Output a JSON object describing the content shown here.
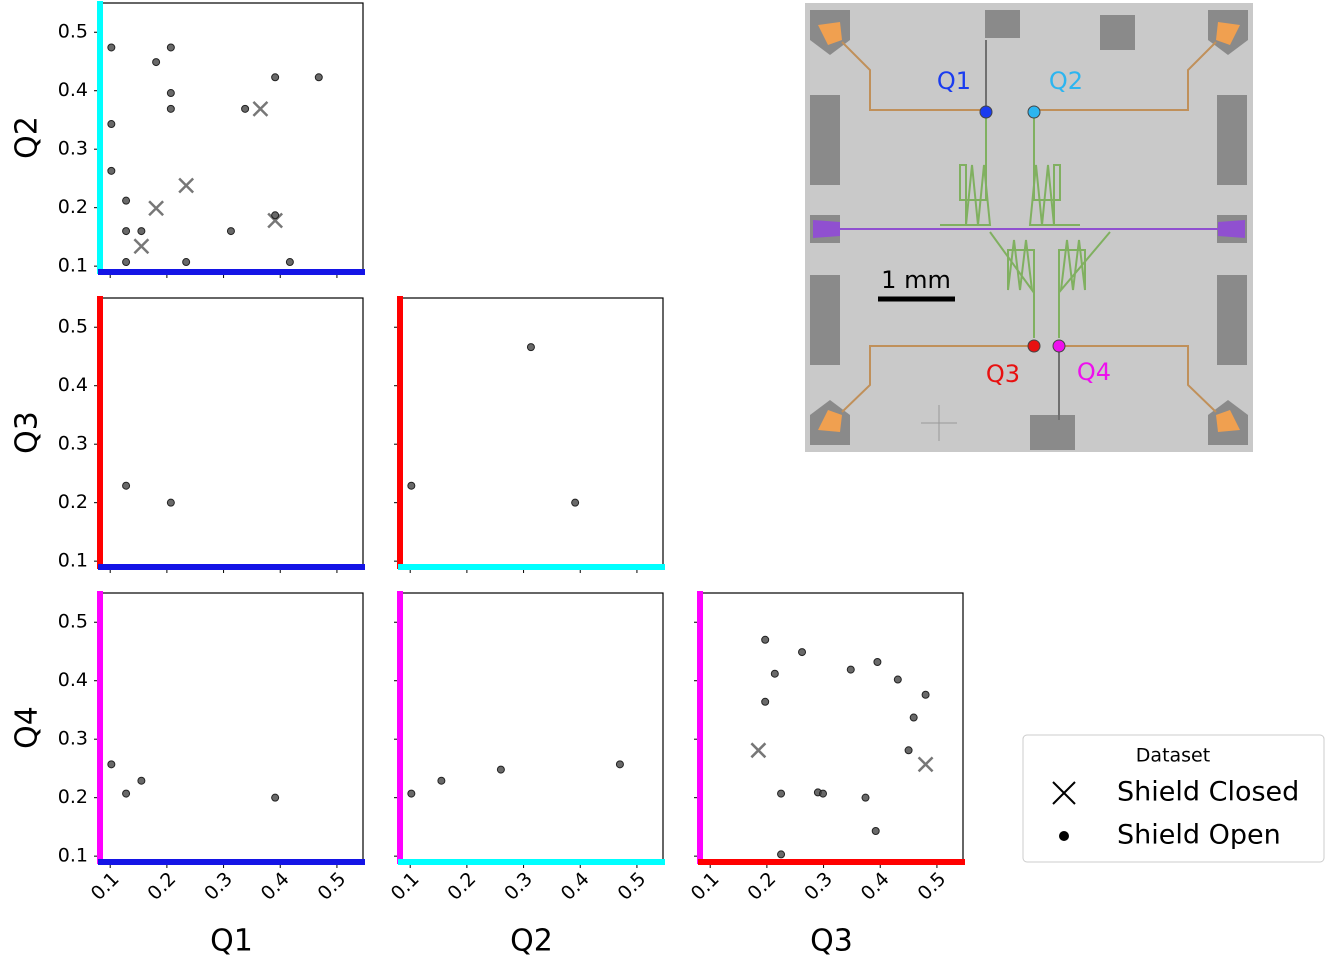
{
  "chart_data": [
    {
      "type": "scatter",
      "ylabel": "Q2",
      "xaxis_color": "#1414e6",
      "yaxis_color": "#00ffff",
      "xlim": [
        0.082,
        0.546
      ],
      "ylim": [
        0.09,
        0.55
      ],
      "yticks": [
        0.1,
        0.2,
        0.3,
        0.4,
        0.5
      ],
      "series": [
        {
          "name": "Shield Closed",
          "marker": "x",
          "x": [
            0.365,
            0.181,
            0.234,
            0.155,
            0.391
          ],
          "values": [
            0.369,
            0.199,
            0.238,
            0.134,
            0.178
          ]
        },
        {
          "name": "Shield Open",
          "marker": "o",
          "x": [
            0.102,
            0.207,
            0.181,
            0.207,
            0.207,
            0.391,
            0.468,
            0.338,
            0.102,
            0.102,
            0.128,
            0.128,
            0.155,
            0.313,
            0.391,
            0.128,
            0.234,
            0.417
          ],
          "values": [
            0.474,
            0.474,
            0.449,
            0.396,
            0.369,
            0.423,
            0.423,
            0.369,
            0.343,
            0.263,
            0.212,
            0.16,
            0.16,
            0.16,
            0.187,
            0.107,
            0.107,
            0.107
          ]
        }
      ]
    },
    {
      "type": "scatter",
      "ylabel": "Q3",
      "xaxis_color": "#1414e6",
      "yaxis_color": "#ff0000",
      "xlim": [
        0.082,
        0.546
      ],
      "ylim": [
        0.09,
        0.55
      ],
      "yticks": [
        0.1,
        0.2,
        0.3,
        0.4,
        0.5
      ],
      "series": [
        {
          "name": "Shield Closed",
          "marker": "x",
          "x": [],
          "values": []
        },
        {
          "name": "Shield Open",
          "marker": "o",
          "x": [
            0.128,
            0.207
          ],
          "values": [
            0.229,
            0.2
          ]
        }
      ]
    },
    {
      "type": "scatter",
      "xaxis_color": "#00ffff",
      "yaxis_color": "#ff0000",
      "xlim": [
        0.082,
        0.546
      ],
      "ylim": [
        0.09,
        0.55
      ],
      "series": [
        {
          "name": "Shield Closed",
          "marker": "x",
          "x": [],
          "values": []
        },
        {
          "name": "Shield Open",
          "marker": "o",
          "x": [
            0.313,
            0.102,
            0.391
          ],
          "values": [
            0.466,
            0.229,
            0.2
          ]
        }
      ]
    },
    {
      "type": "scatter",
      "xlabel": "Q1",
      "ylabel": "Q4",
      "xaxis_color": "#1414e6",
      "yaxis_color": "#ff00ff",
      "xlim": [
        0.082,
        0.546
      ],
      "ylim": [
        0.09,
        0.55
      ],
      "xticks": [
        0.1,
        0.2,
        0.3,
        0.4,
        0.5
      ],
      "yticks": [
        0.1,
        0.2,
        0.3,
        0.4,
        0.5
      ],
      "series": [
        {
          "name": "Shield Closed",
          "marker": "x",
          "x": [],
          "values": []
        },
        {
          "name": "Shield Open",
          "marker": "o",
          "x": [
            0.102,
            0.128,
            0.155,
            0.391
          ],
          "values": [
            0.257,
            0.207,
            0.229,
            0.2
          ]
        }
      ]
    },
    {
      "type": "scatter",
      "xlabel": "Q2",
      "xaxis_color": "#00ffff",
      "yaxis_color": "#ff00ff",
      "xlim": [
        0.082,
        0.546
      ],
      "ylim": [
        0.09,
        0.55
      ],
      "xticks": [
        0.1,
        0.2,
        0.3,
        0.4,
        0.5
      ],
      "series": [
        {
          "name": "Shield Closed",
          "marker": "x",
          "x": [],
          "values": []
        },
        {
          "name": "Shield Open",
          "marker": "o",
          "x": [
            0.102,
            0.155,
            0.26,
            0.47
          ],
          "values": [
            0.207,
            0.229,
            0.248,
            0.257
          ]
        }
      ]
    },
    {
      "type": "scatter",
      "xlabel": "Q3",
      "xaxis_color": "#ff0000",
      "yaxis_color": "#ff00ff",
      "xlim": [
        0.082,
        0.546
      ],
      "ylim": [
        0.09,
        0.55
      ],
      "xticks": [
        0.1,
        0.2,
        0.3,
        0.4,
        0.5
      ],
      "series": [
        {
          "name": "Shield Closed",
          "marker": "x",
          "x": [
            0.185,
            0.48
          ],
          "values": [
            0.281,
            0.257
          ]
        },
        {
          "name": "Shield Open",
          "marker": "o",
          "x": [
            0.197,
            0.214,
            0.197,
            0.262,
            0.348,
            0.395,
            0.431,
            0.48,
            0.459,
            0.45,
            0.225,
            0.29,
            0.299,
            0.374,
            0.392,
            0.225
          ],
          "values": [
            0.47,
            0.412,
            0.364,
            0.449,
            0.419,
            0.432,
            0.402,
            0.376,
            0.337,
            0.281,
            0.207,
            0.209,
            0.207,
            0.2,
            0.143,
            0.103
          ]
        }
      ]
    }
  ],
  "legend": {
    "title": "Dataset",
    "location": "lower right"
  },
  "image": {
    "qubits": [
      {
        "label": "Q1",
        "color": "#1a3cf0"
      },
      {
        "label": "Q2",
        "color": "#2cb5f0"
      },
      {
        "label": "Q3",
        "color": "#e81010"
      },
      {
        "label": "Q4",
        "color": "#ee10ee"
      }
    ],
    "scale_bar": "1 mm"
  }
}
